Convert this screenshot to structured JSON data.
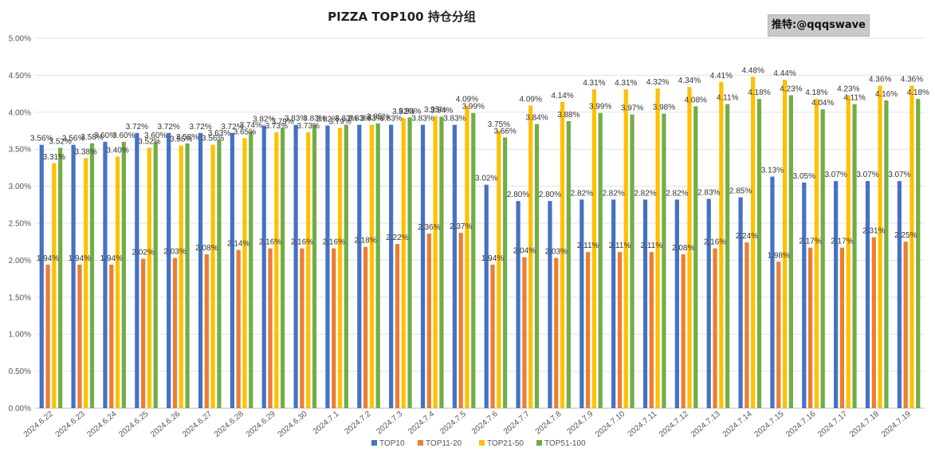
{
  "header": {
    "title": "PIZZA TOP100 持仓分组",
    "watermark": "推特:@qqqswave"
  },
  "chart_data": {
    "type": "bar",
    "title": "PIZZA TOP100 持仓分组",
    "xlabel": "",
    "ylabel": "",
    "ylim": [
      0,
      5
    ],
    "y_ticks": [
      "0.00%",
      "0.50%",
      "1.00%",
      "1.50%",
      "2.00%",
      "2.50%",
      "3.00%",
      "3.50%",
      "4.00%",
      "4.50%",
      "5.00%"
    ],
    "grid": true,
    "legend_position": "bottom",
    "categories": [
      "2024.6.22",
      "2024.6.23",
      "2024.6.24",
      "2024.6.25",
      "2024.6.26",
      "2024.6.27",
      "2024.6.28",
      "2024.6.29",
      "2024.6.30",
      "2024.7.1",
      "2024.7.2",
      "2024.7.3",
      "2024.7.4",
      "2024.7.5",
      "2024.7.6",
      "2024.7.7",
      "2024.7.8",
      "2024.7.9",
      "2024.7.10",
      "2024.7.11",
      "2024.7.12",
      "2024.7.13",
      "2024.7.14",
      "2024.7.15",
      "2024.7.16",
      "2024.7.17",
      "2024.7.18",
      "2024.7.19"
    ],
    "series": [
      {
        "name": "TOP10",
        "color": "#4472c4",
        "values": [
          3.56,
          3.56,
          3.6,
          3.72,
          3.72,
          3.72,
          3.72,
          3.82,
          3.83,
          3.82,
          3.83,
          3.83,
          3.83,
          3.83,
          3.02,
          2.8,
          2.8,
          2.82,
          2.82,
          2.82,
          2.82,
          2.83,
          2.85,
          3.13,
          3.05,
          3.07,
          3.07,
          3.07
        ]
      },
      {
        "name": "TOP11-20",
        "color": "#ed7d31",
        "values": [
          1.94,
          1.94,
          1.94,
          2.02,
          2.03,
          2.08,
          2.14,
          2.16,
          2.16,
          2.16,
          2.18,
          2.22,
          2.36,
          2.37,
          1.94,
          2.04,
          2.03,
          2.11,
          2.11,
          2.11,
          2.08,
          2.16,
          2.24,
          1.98,
          2.17,
          2.17,
          2.31,
          2.25
        ]
      },
      {
        "name": "TOP21-50",
        "color": "#ffc000",
        "values": [
          3.31,
          3.38,
          3.4,
          3.52,
          3.55,
          3.56,
          3.65,
          3.73,
          3.73,
          3.79,
          3.83,
          3.92,
          3.95,
          4.09,
          3.75,
          4.09,
          4.14,
          4.31,
          4.31,
          4.32,
          4.34,
          4.41,
          4.48,
          4.44,
          4.18,
          4.23,
          4.36,
          4.36
        ]
      },
      {
        "name": "TOP51-100",
        "color": "#70ad47",
        "values": [
          3.52,
          3.58,
          3.6,
          3.6,
          3.58,
          3.63,
          3.74,
          3.79,
          3.83,
          3.83,
          3.85,
          3.93,
          3.94,
          3.99,
          3.66,
          3.84,
          3.88,
          3.99,
          3.97,
          3.98,
          4.08,
          4.11,
          4.18,
          4.23,
          4.04,
          4.11,
          4.16,
          4.18
        ]
      }
    ]
  }
}
